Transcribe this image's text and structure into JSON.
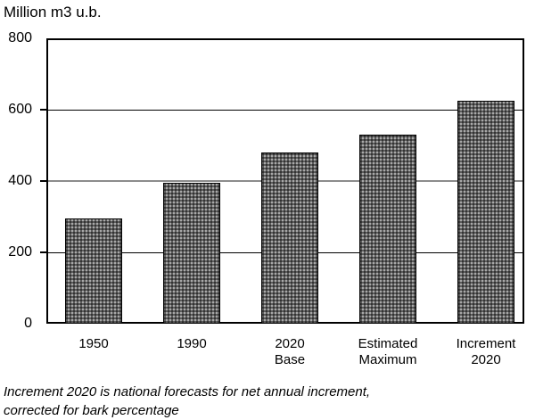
{
  "chart_data": {
    "type": "bar",
    "title": "Million m3 u.b.",
    "categories": [
      "1950",
      "1990",
      "2020\nBase",
      "Estimated\nMaximum",
      "Increment\n2020"
    ],
    "values": [
      295,
      395,
      480,
      530,
      625
    ],
    "xlabel": "",
    "ylabel": "Million m3 u.b.",
    "ylim": [
      0,
      800
    ],
    "yticks": [
      0,
      200,
      400,
      600,
      800
    ],
    "ytick_labels": [
      "0",
      "200",
      "400",
      "600",
      "800"
    ],
    "grid": "horizontal gridlines at 200, 400, 600 inside framed plot area",
    "legend": "none",
    "footnote": "Increment 2020 is national forecasts for net annual increment,\ncorrected for bark percentage",
    "colors": {
      "background": "#ffffff",
      "text": "#000000",
      "frame": "#000000",
      "gridline": "#000000",
      "gridline_mid": "#8c8c8c",
      "bar_fill": "#a8a8a8",
      "bar_stipple": "#303030",
      "bar_border": "#000000"
    }
  }
}
